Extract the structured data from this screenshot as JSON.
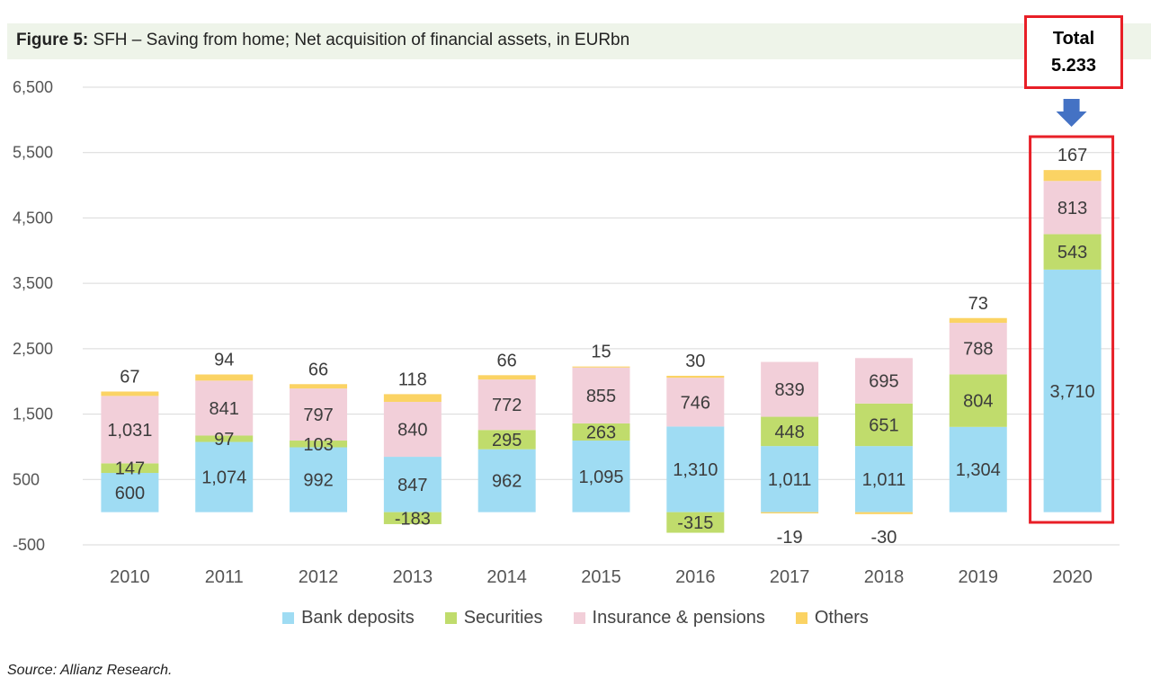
{
  "title": {
    "prefix": "Figure 5:",
    "text": "SFH – Saving from home; Net acquisition of financial assets, in EURbn"
  },
  "source": "Source: Allianz Research.",
  "callout": {
    "line1": "Total",
    "line2": "5.233"
  },
  "colors": {
    "bank": "#9fdcf3",
    "securities": "#c0dc6c",
    "insurance": "#f2cfd9",
    "others": "#fbd364",
    "highlight": "#e81f27",
    "arrow": "#4472c4",
    "title_band": "#eef4e9"
  },
  "chart_data": {
    "type": "bar",
    "stacked": true,
    "title": "SFH – Saving from home; Net acquisition of financial assets, in EURbn",
    "categories": [
      "2010",
      "2011",
      "2012",
      "2013",
      "2014",
      "2015",
      "2016",
      "2017",
      "2018",
      "2019",
      "2020"
    ],
    "series": [
      {
        "name": "Bank deposits",
        "values": [
          600,
          1074,
          992,
          847,
          962,
          1095,
          1310,
          1011,
          1011,
          1304,
          3710
        ],
        "labels": [
          "600",
          "1,074",
          "992",
          "847",
          "962",
          "1,095",
          "1,310",
          "1,011",
          "1,011",
          "1,304",
          "3,710"
        ]
      },
      {
        "name": "Securities",
        "values": [
          147,
          97,
          103,
          -183,
          295,
          263,
          -315,
          448,
          651,
          804,
          543
        ],
        "labels": [
          "147",
          "97",
          "103",
          "-183",
          "295",
          "263",
          "-315",
          "448",
          "651",
          "804",
          "543"
        ]
      },
      {
        "name": "Insurance & pensions",
        "values": [
          1031,
          841,
          797,
          840,
          772,
          855,
          746,
          839,
          695,
          788,
          813
        ],
        "labels": [
          "1,031",
          "841",
          "797",
          "840",
          "772",
          "855",
          "746",
          "839",
          "695",
          "788",
          "813"
        ]
      },
      {
        "name": "Others",
        "values": [
          67,
          94,
          66,
          118,
          66,
          15,
          30,
          -19,
          -30,
          73,
          167
        ],
        "labels": [
          "67",
          "94",
          "66",
          "118",
          "66",
          "15",
          "30",
          "-19",
          "-30",
          "73",
          "167"
        ]
      }
    ],
    "yticks": [
      -500,
      500,
      1500,
      2500,
      3500,
      4500,
      5500,
      6500
    ],
    "ytick_labels": [
      "-500",
      "500",
      "1,500",
      "2,500",
      "3,500",
      "4,500",
      "5,500",
      "6,500"
    ],
    "ylim": [
      -500,
      6500
    ],
    "grid": true,
    "legend": "bottom",
    "highlighted_category": "2020"
  }
}
